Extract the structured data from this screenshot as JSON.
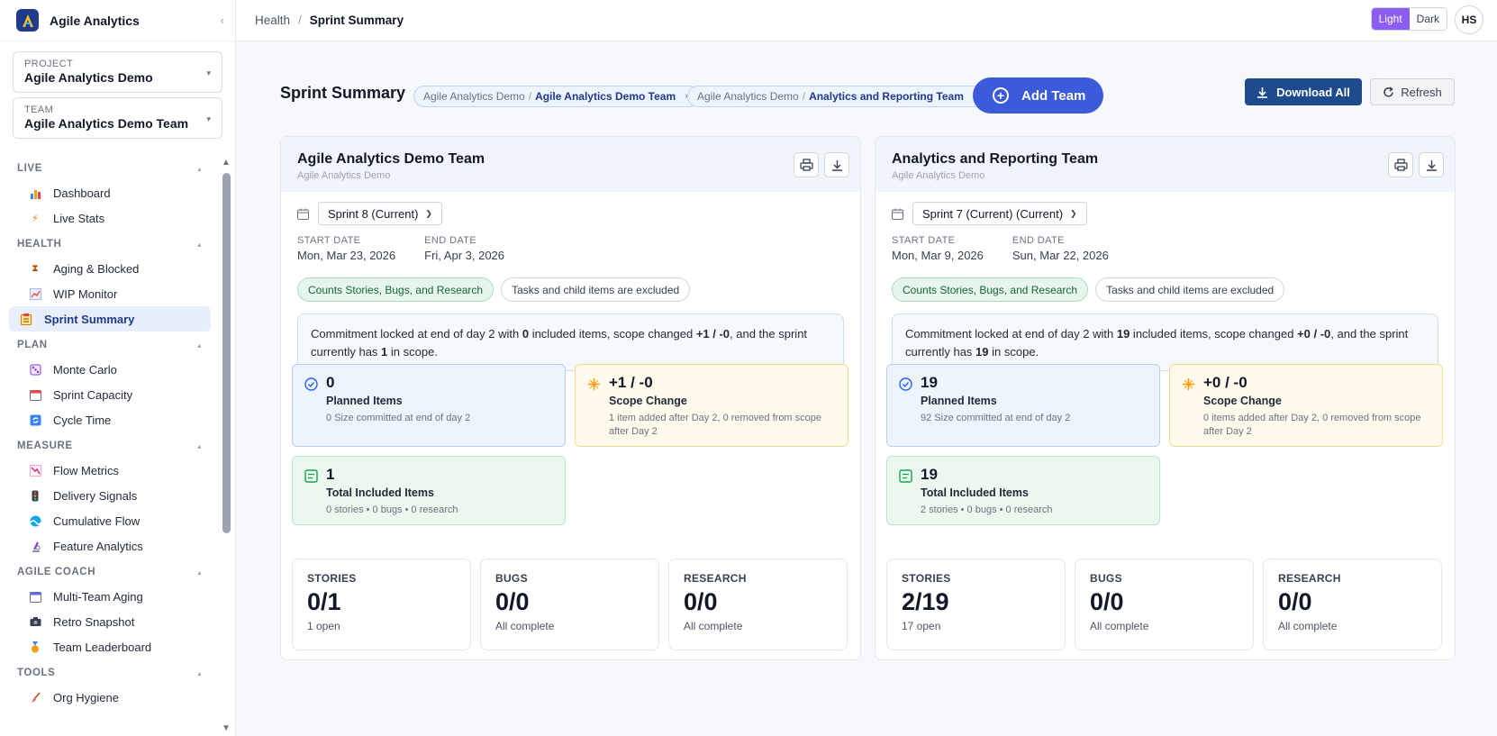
{
  "app": {
    "title": "Agile Analytics"
  },
  "selectors": {
    "project": {
      "label": "PROJECT",
      "value": "Agile Analytics Demo"
    },
    "team": {
      "label": "TEAM",
      "value": "Agile Analytics Demo Team"
    }
  },
  "nav": {
    "live": "LIVE",
    "health": "HEALTH",
    "plan": "PLAN",
    "measure": "MEASURE",
    "coach": "AGILE COACH",
    "tools": "TOOLS",
    "items": {
      "dashboard": "Dashboard",
      "live_stats": "Live Stats",
      "aging": "Aging & Blocked",
      "wip": "WIP Monitor",
      "sprint_summary": "Sprint Summary",
      "monte_carlo": "Monte Carlo",
      "sprint_capacity": "Sprint Capacity",
      "cycle_time": "Cycle Time",
      "flow_metrics": "Flow Metrics",
      "delivery_signals": "Delivery Signals",
      "cumulative_flow": "Cumulative Flow",
      "feature_analytics": "Feature Analytics",
      "multi_team_aging": "Multi-Team Aging",
      "retro_snapshot": "Retro Snapshot",
      "team_leaderboard": "Team Leaderboard",
      "org_hygiene": "Org Hygiene"
    }
  },
  "breadcrumb": {
    "parent": "Health",
    "sep": "/",
    "current": "Sprint Summary"
  },
  "theme": {
    "light": "Light",
    "dark": "Dark"
  },
  "user": {
    "initials": "HS"
  },
  "page": {
    "title": "Sprint Summary",
    "chips": [
      {
        "project": "Agile Analytics Demo",
        "sep": "/",
        "team": "Agile Analytics Demo Team",
        "remove": "×"
      },
      {
        "project": "Agile Analytics Demo",
        "sep": "/",
        "team": "Analytics and Reporting Team",
        "remove": "×"
      }
    ],
    "add_team": "Add Team",
    "download_all": "Download All",
    "refresh": "Refresh"
  },
  "common": {
    "start_label": "START DATE",
    "end_label": "END DATE",
    "tag_counts": "Counts Stories, Bugs, and Research",
    "tag_excluded": "Tasks and child items are excluded",
    "planned_label": "Planned Items",
    "scope_label": "Scope Change",
    "total_label": "Total Included Items",
    "stories_label": "STORIES",
    "bugs_label": "BUGS",
    "research_label": "RESEARCH",
    "sum_pre": "Commitment locked at end of day 2 with ",
    "sum_mid1": " included items, scope changed ",
    "sum_mid2": ", and the sprint currently has ",
    "sum_post": " in scope."
  },
  "teams": [
    {
      "title": "Agile Analytics Demo Team",
      "project": "Agile Analytics Demo",
      "sprint": "Sprint 8 (Current)",
      "start": "Mon, Mar 23, 2026",
      "end": "Fri, Apr 3, 2026",
      "included": "0",
      "scope": "+1 / -0",
      "in_scope": "1",
      "planned_value": "0",
      "planned_desc": "0 Size committed at end of day 2",
      "scope_value": "+1 / -0",
      "scope_desc": "1 item added after Day 2, 0 removed from scope after Day 2",
      "total_value": "1",
      "total_desc": "0 stories • 0 bugs • 0 research",
      "stories": "0/1",
      "stories_sub": "1 open",
      "bugs": "0/0",
      "bugs_sub": "All complete",
      "research": "0/0",
      "research_sub": "All complete"
    },
    {
      "title": "Analytics and Reporting Team",
      "project": "Agile Analytics Demo",
      "sprint": "Sprint 7 (Current) (Current)",
      "start": "Mon, Mar 9, 2026",
      "end": "Sun, Mar 22, 2026",
      "included": "19",
      "scope": "+0 / -0",
      "in_scope": "19",
      "planned_value": "19",
      "planned_desc": "92 Size committed at end of day 2",
      "scope_value": "+0 / -0",
      "scope_desc": "0 items added after Day 2, 0 removed from scope after Day 2",
      "total_value": "19",
      "total_desc": "2 stories • 0 bugs • 0 research",
      "stories": "2/19",
      "stories_sub": "17 open",
      "bugs": "0/0",
      "bugs_sub": "All complete",
      "research": "0/0",
      "research_sub": "All complete"
    }
  ]
}
